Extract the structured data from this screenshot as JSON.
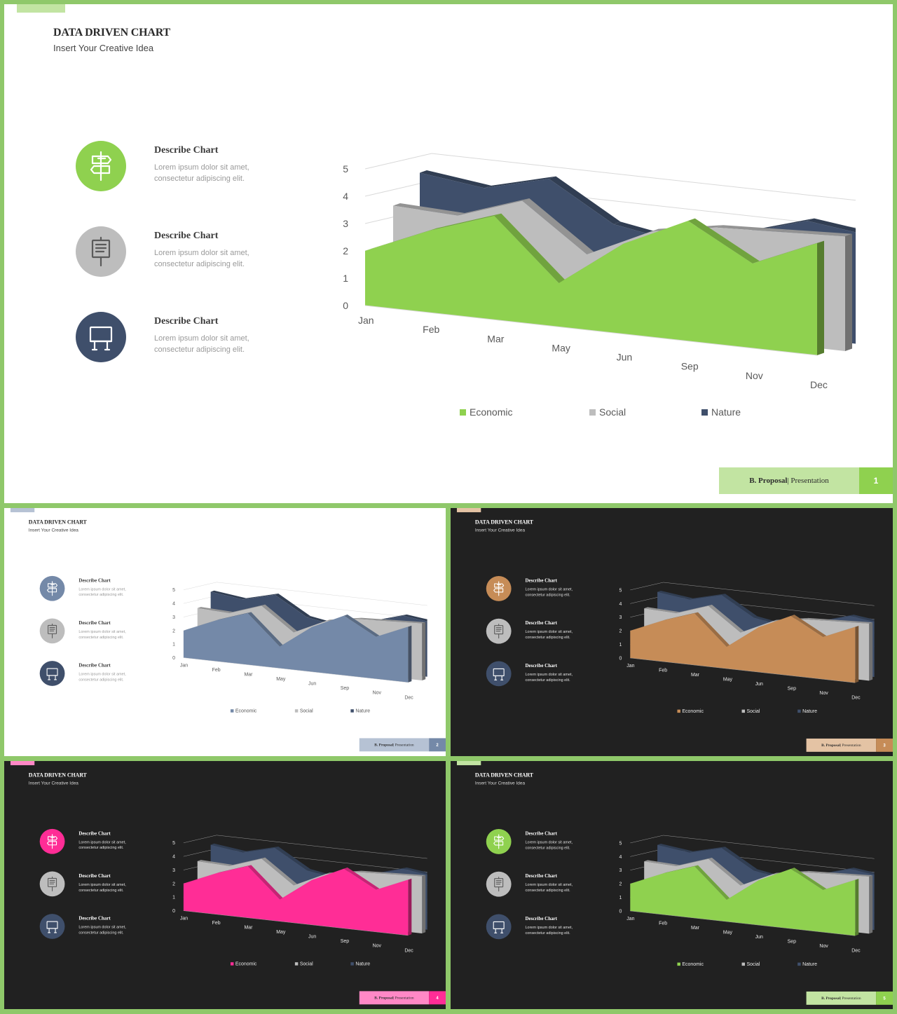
{
  "slides": [
    {
      "theme": "light",
      "accent": "#8fd14f",
      "accent_light": "#c2e4a2",
      "number": "1"
    },
    {
      "theme": "light",
      "accent": "#7489a8",
      "accent_light": "#b6c2d4",
      "number": "2"
    },
    {
      "theme": "dark",
      "accent": "#c68c57",
      "accent_light": "#e4c3a4",
      "number": "3"
    },
    {
      "theme": "dark",
      "accent": "#ff2d96",
      "accent_light": "#ff88c6",
      "number": "4"
    },
    {
      "theme": "dark",
      "accent": "#8fd14f",
      "accent_light": "#c2e4a2",
      "number": "5"
    }
  ],
  "page": {
    "title": "DATA DRIVEN CHART",
    "subtitle": "Insert Your Creative Idea"
  },
  "descriptions": [
    {
      "icon": "signpost-icon",
      "title": "Describe Chart",
      "text": "Lorem ipsum dolor sit amet, consectetur adipiscing elit."
    },
    {
      "icon": "easel-board-icon",
      "title": "Describe Chart",
      "text": "Lorem ipsum dolor sit amet, consectetur adipiscing elit."
    },
    {
      "icon": "billboard-icon",
      "title": "Describe Chart",
      "text": "Lorem ipsum dolor sit amet, consectetur adipiscing elit."
    }
  ],
  "icon_colors": {
    "gray": "#bdbdbd",
    "navy": "#3f4f6b"
  },
  "footer": {
    "brand": "B. Proposal",
    "separator": "|",
    "label": "Presentation"
  },
  "chart_data": {
    "type": "area",
    "categories": [
      "Jan",
      "Feb",
      "Mar",
      "May",
      "Jun",
      "Sep",
      "Nov",
      "Dec"
    ],
    "series": [
      {
        "name": "Nature",
        "color": "#3f4f6b",
        "values": [
          4.5,
          4.2,
          4.8,
          3.4,
          3.0,
          3.6,
          4.3,
          4.0
        ]
      },
      {
        "name": "Social",
        "color": "#bdbdbd",
        "values": [
          3.5,
          3.4,
          4.2,
          2.5,
          3.6,
          4.0,
          4.1,
          4.2
        ]
      },
      {
        "name": "Economic",
        "values": [
          2.0,
          3.0,
          3.8,
          1.6,
          3.3,
          4.4,
          3.1,
          4.1
        ]
      }
    ],
    "ylim": [
      0,
      5
    ],
    "yticks": [
      "0",
      "1",
      "2",
      "3",
      "4",
      "5"
    ],
    "grid": true,
    "legend": "bottom"
  }
}
